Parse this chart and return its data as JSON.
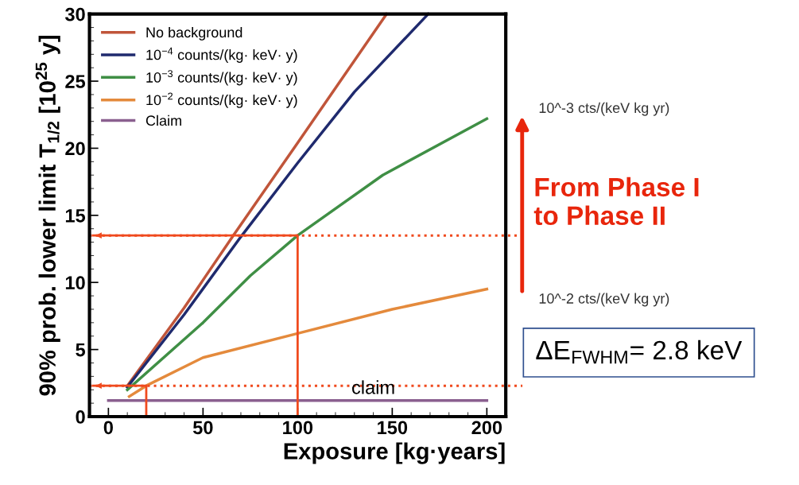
{
  "chart_data": {
    "type": "line",
    "xlabel": "Exposure [kg·years]",
    "ylabel": "90% prob. lower limit T$_{1/2}$ [10$^{25}$ y]",
    "xlim": [
      -10,
      210
    ],
    "ylim": [
      0,
      30
    ],
    "xticks": [
      0,
      50,
      100,
      150,
      200
    ],
    "yticks": [
      0,
      5,
      10,
      15,
      20,
      25,
      30
    ],
    "grid": false,
    "legend": "top left",
    "marker": "none",
    "line_style": "solid",
    "series": [
      {
        "name": "No background",
        "color": "#c0553a",
        "x": [
          10,
          40,
          66,
          100,
          147
        ],
        "values": [
          2.3,
          8.1,
          13.5,
          20.4,
          30
        ]
      },
      {
        "name": "10$^{−4}$ counts/(kg· keV· y)",
        "color": "#1f2a6e",
        "x": [
          10,
          40,
          70,
          100,
          130,
          169
        ],
        "values": [
          2.2,
          7.6,
          13.4,
          18.9,
          24.2,
          30
        ]
      },
      {
        "name": "10$^{−3}$ counts/(kg· keV· y)",
        "color": "#3f8f45",
        "x": [
          10,
          50,
          75,
          100,
          145,
          200
        ],
        "values": [
          2.0,
          7.0,
          10.5,
          13.5,
          18.0,
          22.2
        ]
      },
      {
        "name": "10$^{−2}$ counts/(kg· keV· y)",
        "color": "#e48a3c",
        "x": [
          11,
          20,
          50,
          100,
          150,
          200
        ],
        "values": [
          1.5,
          2.3,
          4.4,
          6.2,
          8.0,
          9.5
        ]
      },
      {
        "name": "Claim",
        "color": "#8a5f8f",
        "x": [
          0,
          200
        ],
        "values": [
          1.2,
          1.2
        ]
      },
      {
        "color": "#f04a1e",
        "x": [
          100,
          100,
          -8
        ],
        "values": [
          0,
          13.5,
          13.5
        ]
      },
      {
        "color": "#f04a1e",
        "x": [
          20,
          20,
          -8
        ],
        "values": [
          0,
          2.3,
          2.3
        ]
      }
    ],
    "ref_lines": [
      {
        "axis": "y",
        "value": 13.5,
        "color": "#f04a1e",
        "line_style": "dotted"
      },
      {
        "axis": "y",
        "value": 2.3,
        "color": "#f04a1e",
        "line_style": "dotted"
      }
    ],
    "annotations": [
      {
        "text": "claim",
        "x": 140,
        "y": 1.2
      },
      "10^-3 cts/(keV kg yr)",
      "From Phase I\nto Phase II",
      "10^-2 cts/(keV kg yr)",
      "ΔE$_{FWHM}$= 2.8 keV"
    ]
  }
}
